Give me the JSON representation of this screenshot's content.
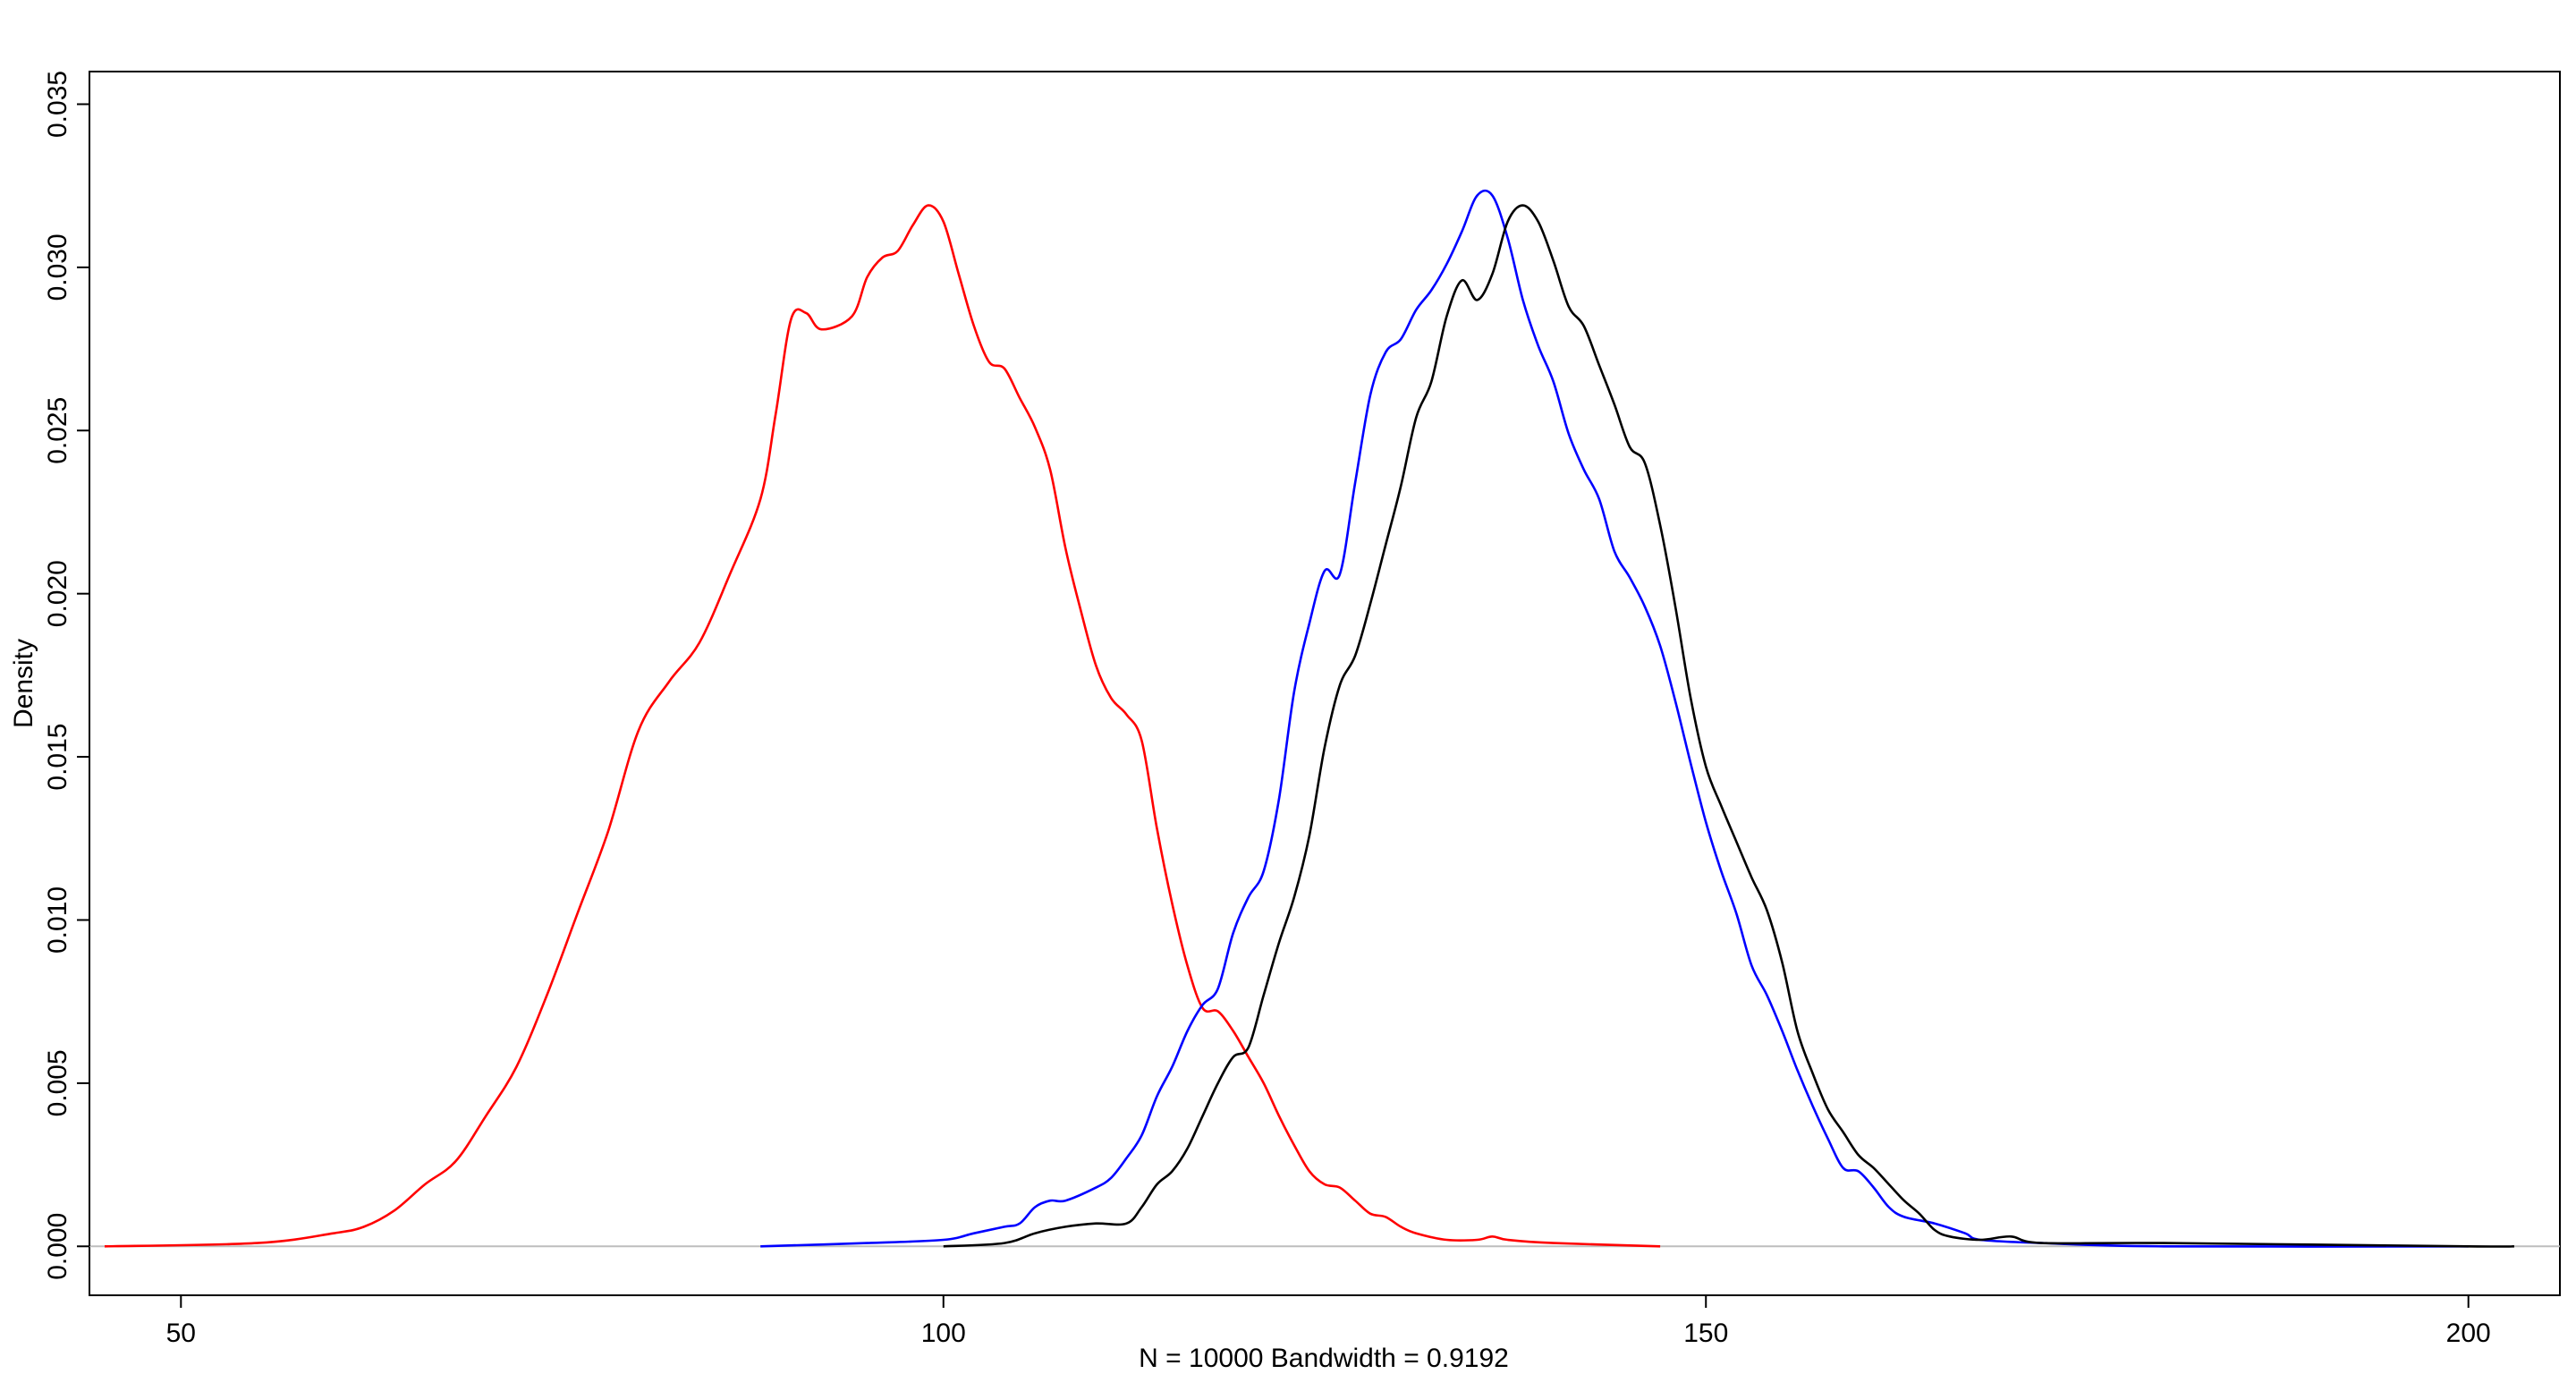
{
  "chart_data": {
    "type": "line",
    "title": "",
    "xlabel": "N = 10000   Bandwidth = 0.9192",
    "ylabel": "Density",
    "xlim": [
      44,
      206
    ],
    "ylim": [
      -0.0015,
      0.036
    ],
    "x_ticks": [
      50,
      100,
      150,
      200
    ],
    "y_ticks": [
      0.0,
      0.005,
      0.01,
      0.015,
      0.02,
      0.025,
      0.03,
      0.035
    ],
    "x_tick_labels": [
      "50",
      "100",
      "150",
      "200"
    ],
    "y_tick_labels": [
      "0.000",
      "0.005",
      "0.010",
      "0.015",
      "0.020",
      "0.025",
      "0.030",
      "0.035"
    ],
    "baseline": {
      "y": 0,
      "color": "#bebebe"
    },
    "series": [
      {
        "color": "#ff0000",
        "points": [
          [
            45,
            0
          ],
          [
            55,
            0.0001
          ],
          [
            60,
            0.0004
          ],
          [
            62,
            0.0006
          ],
          [
            64,
            0.0011
          ],
          [
            66,
            0.0019
          ],
          [
            68,
            0.0026
          ],
          [
            70,
            0.004
          ],
          [
            72,
            0.0055
          ],
          [
            74,
            0.0077
          ],
          [
            76,
            0.0102
          ],
          [
            78,
            0.0127
          ],
          [
            80,
            0.0158
          ],
          [
            82,
            0.0173
          ],
          [
            84,
            0.0185
          ],
          [
            86,
            0.0206
          ],
          [
            88,
            0.0229
          ],
          [
            89,
            0.0255
          ],
          [
            90,
            0.0284
          ],
          [
            91,
            0.0286
          ],
          [
            92,
            0.0281
          ],
          [
            94,
            0.0285
          ],
          [
            95,
            0.0297
          ],
          [
            96,
            0.0303
          ],
          [
            97,
            0.0305
          ],
          [
            98,
            0.0313
          ],
          [
            99,
            0.0319
          ],
          [
            100,
            0.0314
          ],
          [
            101,
            0.0298
          ],
          [
            102,
            0.0282
          ],
          [
            103,
            0.0271
          ],
          [
            104,
            0.0269
          ],
          [
            105,
            0.026
          ],
          [
            106,
            0.0251
          ],
          [
            107,
            0.0238
          ],
          [
            108,
            0.0214
          ],
          [
            109,
            0.0195
          ],
          [
            110,
            0.0178
          ],
          [
            111,
            0.0168
          ],
          [
            112,
            0.0163
          ],
          [
            113,
            0.0155
          ],
          [
            114,
            0.0128
          ],
          [
            115,
            0.0105
          ],
          [
            116,
            0.0086
          ],
          [
            117,
            0.0073
          ],
          [
            118,
            0.0072
          ],
          [
            119,
            0.0066
          ],
          [
            120,
            0.0058
          ],
          [
            121,
            0.005
          ],
          [
            122,
            0.004
          ],
          [
            123,
            0.0031
          ],
          [
            124,
            0.0023
          ],
          [
            125,
            0.0019
          ],
          [
            126,
            0.0018
          ],
          [
            127,
            0.0014
          ],
          [
            128,
            0.001
          ],
          [
            129,
            0.0009
          ],
          [
            130,
            0.0006
          ],
          [
            131,
            0.0004
          ],
          [
            133,
            0.0002
          ],
          [
            135,
            0.0002
          ],
          [
            136,
            0.0003
          ],
          [
            137,
            0.0002
          ],
          [
            140,
            0.0001
          ],
          [
            147,
            0
          ]
        ]
      },
      {
        "color": "#0000ff",
        "points": [
          [
            88,
            0
          ],
          [
            95,
            0.0001
          ],
          [
            100,
            0.0002
          ],
          [
            102,
            0.0004
          ],
          [
            104,
            0.0006
          ],
          [
            105,
            0.0007
          ],
          [
            106,
            0.0012
          ],
          [
            107,
            0.0014
          ],
          [
            108,
            0.0014
          ],
          [
            110,
            0.0018
          ],
          [
            111,
            0.0021
          ],
          [
            112,
            0.0027
          ],
          [
            113,
            0.0034
          ],
          [
            114,
            0.0046
          ],
          [
            115,
            0.0055
          ],
          [
            116,
            0.0066
          ],
          [
            117,
            0.0074
          ],
          [
            118,
            0.0079
          ],
          [
            119,
            0.0096
          ],
          [
            120,
            0.0107
          ],
          [
            121,
            0.0115
          ],
          [
            122,
            0.0137
          ],
          [
            123,
            0.017
          ],
          [
            124,
            0.0191
          ],
          [
            125,
            0.0207
          ],
          [
            126,
            0.0206
          ],
          [
            127,
            0.0234
          ],
          [
            128,
            0.0261
          ],
          [
            129,
            0.0274
          ],
          [
            130,
            0.0278
          ],
          [
            131,
            0.0287
          ],
          [
            132,
            0.0293
          ],
          [
            133,
            0.0301
          ],
          [
            134,
            0.0311
          ],
          [
            135,
            0.0322
          ],
          [
            136,
            0.0322
          ],
          [
            137,
            0.0309
          ],
          [
            138,
            0.029
          ],
          [
            139,
            0.0276
          ],
          [
            140,
            0.0265
          ],
          [
            141,
            0.0249
          ],
          [
            142,
            0.0238
          ],
          [
            143,
            0.0229
          ],
          [
            144,
            0.0213
          ],
          [
            145,
            0.0205
          ],
          [
            146,
            0.0196
          ],
          [
            147,
            0.0184
          ],
          [
            148,
            0.0167
          ],
          [
            149,
            0.0148
          ],
          [
            150,
            0.013
          ],
          [
            151,
            0.0115
          ],
          [
            152,
            0.0102
          ],
          [
            153,
            0.0086
          ],
          [
            154,
            0.0077
          ],
          [
            155,
            0.0066
          ],
          [
            156,
            0.0054
          ],
          [
            157,
            0.0043
          ],
          [
            158,
            0.0033
          ],
          [
            159,
            0.0024
          ],
          [
            160,
            0.0023
          ],
          [
            161,
            0.0018
          ],
          [
            162,
            0.0012
          ],
          [
            163,
            0.0009
          ],
          [
            165,
            0.0007
          ],
          [
            167,
            0.0004
          ],
          [
            168,
            0.0002
          ],
          [
            172,
            0.0001
          ],
          [
            180,
            0
          ],
          [
            200,
            0
          ]
        ]
      },
      {
        "color": "#000000",
        "points": [
          [
            100,
            0
          ],
          [
            104,
            0.0001
          ],
          [
            106,
            0.0004
          ],
          [
            108,
            0.0006
          ],
          [
            110,
            0.0007
          ],
          [
            112,
            0.0007
          ],
          [
            113,
            0.0012
          ],
          [
            114,
            0.0019
          ],
          [
            115,
            0.0023
          ],
          [
            116,
            0.003
          ],
          [
            117,
            0.004
          ],
          [
            118,
            0.005
          ],
          [
            119,
            0.0058
          ],
          [
            120,
            0.0061
          ],
          [
            121,
            0.0077
          ],
          [
            122,
            0.0093
          ],
          [
            123,
            0.0107
          ],
          [
            124,
            0.0126
          ],
          [
            125,
            0.0153
          ],
          [
            126,
            0.0172
          ],
          [
            127,
            0.0181
          ],
          [
            128,
            0.0197
          ],
          [
            129,
            0.0215
          ],
          [
            130,
            0.0233
          ],
          [
            131,
            0.0254
          ],
          [
            132,
            0.0265
          ],
          [
            133,
            0.0285
          ],
          [
            134,
            0.0296
          ],
          [
            135,
            0.029
          ],
          [
            136,
            0.0298
          ],
          [
            137,
            0.0314
          ],
          [
            138,
            0.0319
          ],
          [
            139,
            0.0314
          ],
          [
            140,
            0.0302
          ],
          [
            141,
            0.0288
          ],
          [
            142,
            0.0282
          ],
          [
            143,
            0.027
          ],
          [
            144,
            0.0258
          ],
          [
            145,
            0.0245
          ],
          [
            146,
            0.024
          ],
          [
            147,
            0.0221
          ],
          [
            148,
            0.0196
          ],
          [
            149,
            0.0168
          ],
          [
            150,
            0.0147
          ],
          [
            151,
            0.0135
          ],
          [
            152,
            0.0124
          ],
          [
            153,
            0.0113
          ],
          [
            154,
            0.0103
          ],
          [
            155,
            0.0087
          ],
          [
            156,
            0.0066
          ],
          [
            157,
            0.0053
          ],
          [
            158,
            0.0042
          ],
          [
            159,
            0.0035
          ],
          [
            160,
            0.0028
          ],
          [
            161,
            0.0024
          ],
          [
            162,
            0.0019
          ],
          [
            163,
            0.0014
          ],
          [
            164,
            0.001
          ],
          [
            165,
            0.0005
          ],
          [
            166,
            0.0003
          ],
          [
            168,
            0.0002
          ],
          [
            170,
            0.0003
          ],
          [
            172,
            0.0001
          ],
          [
            180,
            0.0001
          ],
          [
            200,
            0
          ],
          [
            203,
            0
          ]
        ]
      }
    ]
  }
}
